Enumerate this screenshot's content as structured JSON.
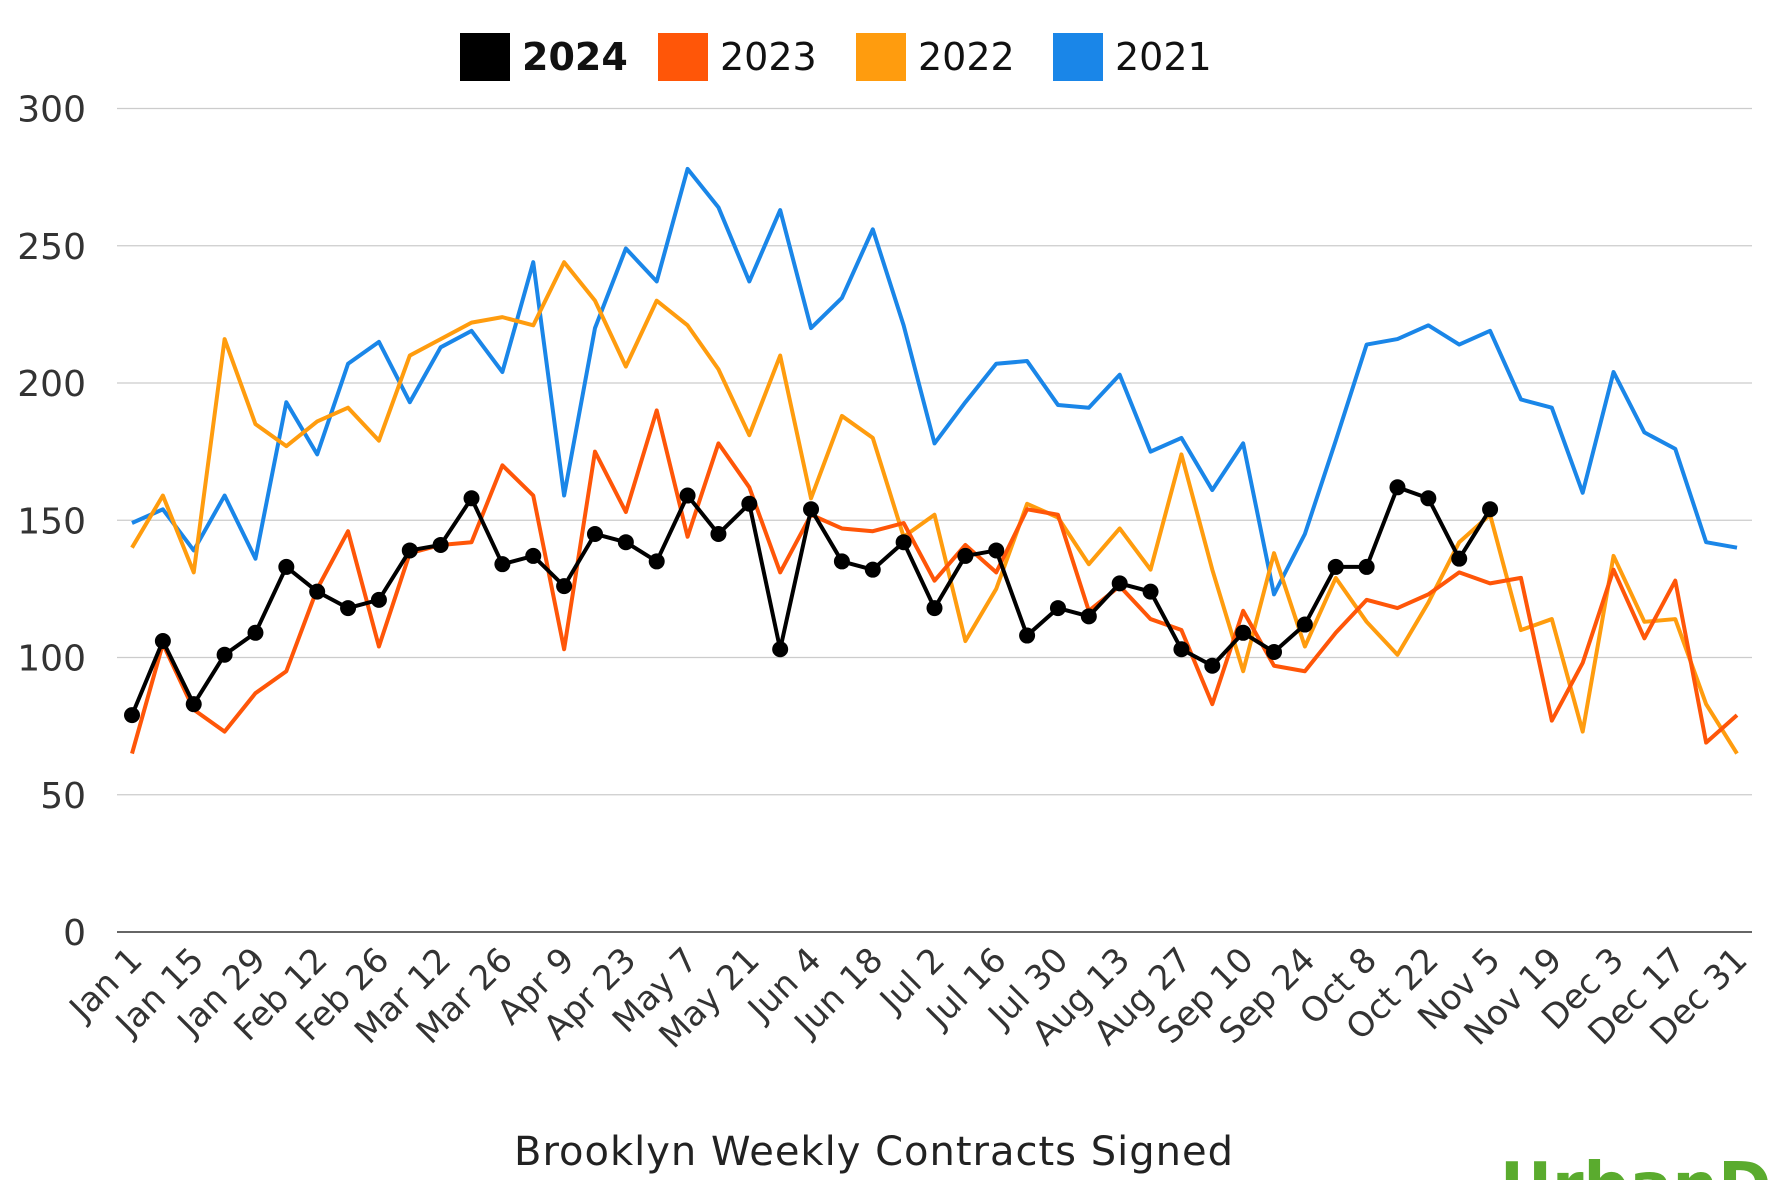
{
  "chart_data": {
    "type": "line",
    "title": "Brooklyn Weekly Contracts Signed",
    "xlabel": "",
    "ylabel": "",
    "ylim": [
      0,
      300
    ],
    "yticks": [
      0,
      50,
      100,
      150,
      200,
      250,
      300
    ],
    "grid": true,
    "legend_position": "top-center",
    "x_tick_labels": [
      "Jan 1",
      "Jan 15",
      "Jan 29",
      "Feb 12",
      "Feb 26",
      "Mar 12",
      "Mar 26",
      "Apr 9",
      "Apr 23",
      "May 7",
      "May 21",
      "Jun 4",
      "Jun 18",
      "Jul 2",
      "Jul 16",
      "Jul 30",
      "Aug 13",
      "Aug 27",
      "Sep 10",
      "Sep 24",
      "Oct 8",
      "Oct 22",
      "Nov 5",
      "Nov 19",
      "Dec 3",
      "Dec 17",
      "Dec 31"
    ],
    "weeks_count": 53,
    "series": [
      {
        "name": "2024",
        "color": "#000000",
        "markers": true,
        "values": [
          79,
          106,
          83,
          101,
          109,
          133,
          124,
          118,
          121,
          139,
          141,
          158,
          134,
          137,
          126,
          145,
          142,
          135,
          159,
          145,
          156,
          103,
          154,
          135,
          132,
          142,
          118,
          137,
          139,
          108,
          118,
          115,
          127,
          124,
          103,
          97,
          109,
          102,
          112,
          133,
          133,
          162,
          158,
          136,
          154
        ]
      },
      {
        "name": "2023",
        "color": "#FF5608",
        "markers": false,
        "values": [
          65,
          105,
          81,
          73,
          87,
          95,
          125,
          146,
          104,
          138,
          141,
          142,
          170,
          159,
          103,
          175,
          153,
          190,
          144,
          178,
          162,
          131,
          152,
          147,
          146,
          149,
          128,
          141,
          131,
          154,
          152,
          117,
          126,
          114,
          110,
          83,
          117,
          97,
          95,
          109,
          121,
          118,
          123,
          131,
          127,
          129,
          77,
          98,
          132,
          107,
          128,
          69,
          79
        ]
      },
      {
        "name": "2022",
        "color": "#FF9C0E",
        "markers": false,
        "values": [
          140,
          159,
          131,
          216,
          185,
          177,
          186,
          191,
          179,
          210,
          216,
          222,
          224,
          221,
          244,
          230,
          206,
          230,
          221,
          205,
          181,
          210,
          158,
          188,
          180,
          144,
          152,
          106,
          125,
          156,
          151,
          134,
          147,
          132,
          174,
          132,
          95,
          138,
          104,
          129,
          113,
          101,
          120,
          142,
          152,
          110,
          114,
          73,
          137,
          113,
          114,
          83,
          65
        ]
      },
      {
        "name": "2021",
        "color": "#1A86E8",
        "markers": false,
        "values": [
          149,
          154,
          139,
          159,
          136,
          193,
          174,
          207,
          215,
          193,
          213,
          219,
          204,
          244,
          159,
          220,
          249,
          237,
          278,
          264,
          237,
          263,
          220,
          231,
          256,
          221,
          178,
          193,
          207,
          208,
          192,
          191,
          203,
          175,
          180,
          161,
          178,
          123,
          145,
          179,
          214,
          216,
          221,
          214,
          219,
          194,
          191,
          160,
          204,
          182,
          176,
          142,
          140
        ]
      }
    ]
  },
  "logo": {
    "text": "UrbanDigs",
    "color": "#5AAB2E"
  }
}
